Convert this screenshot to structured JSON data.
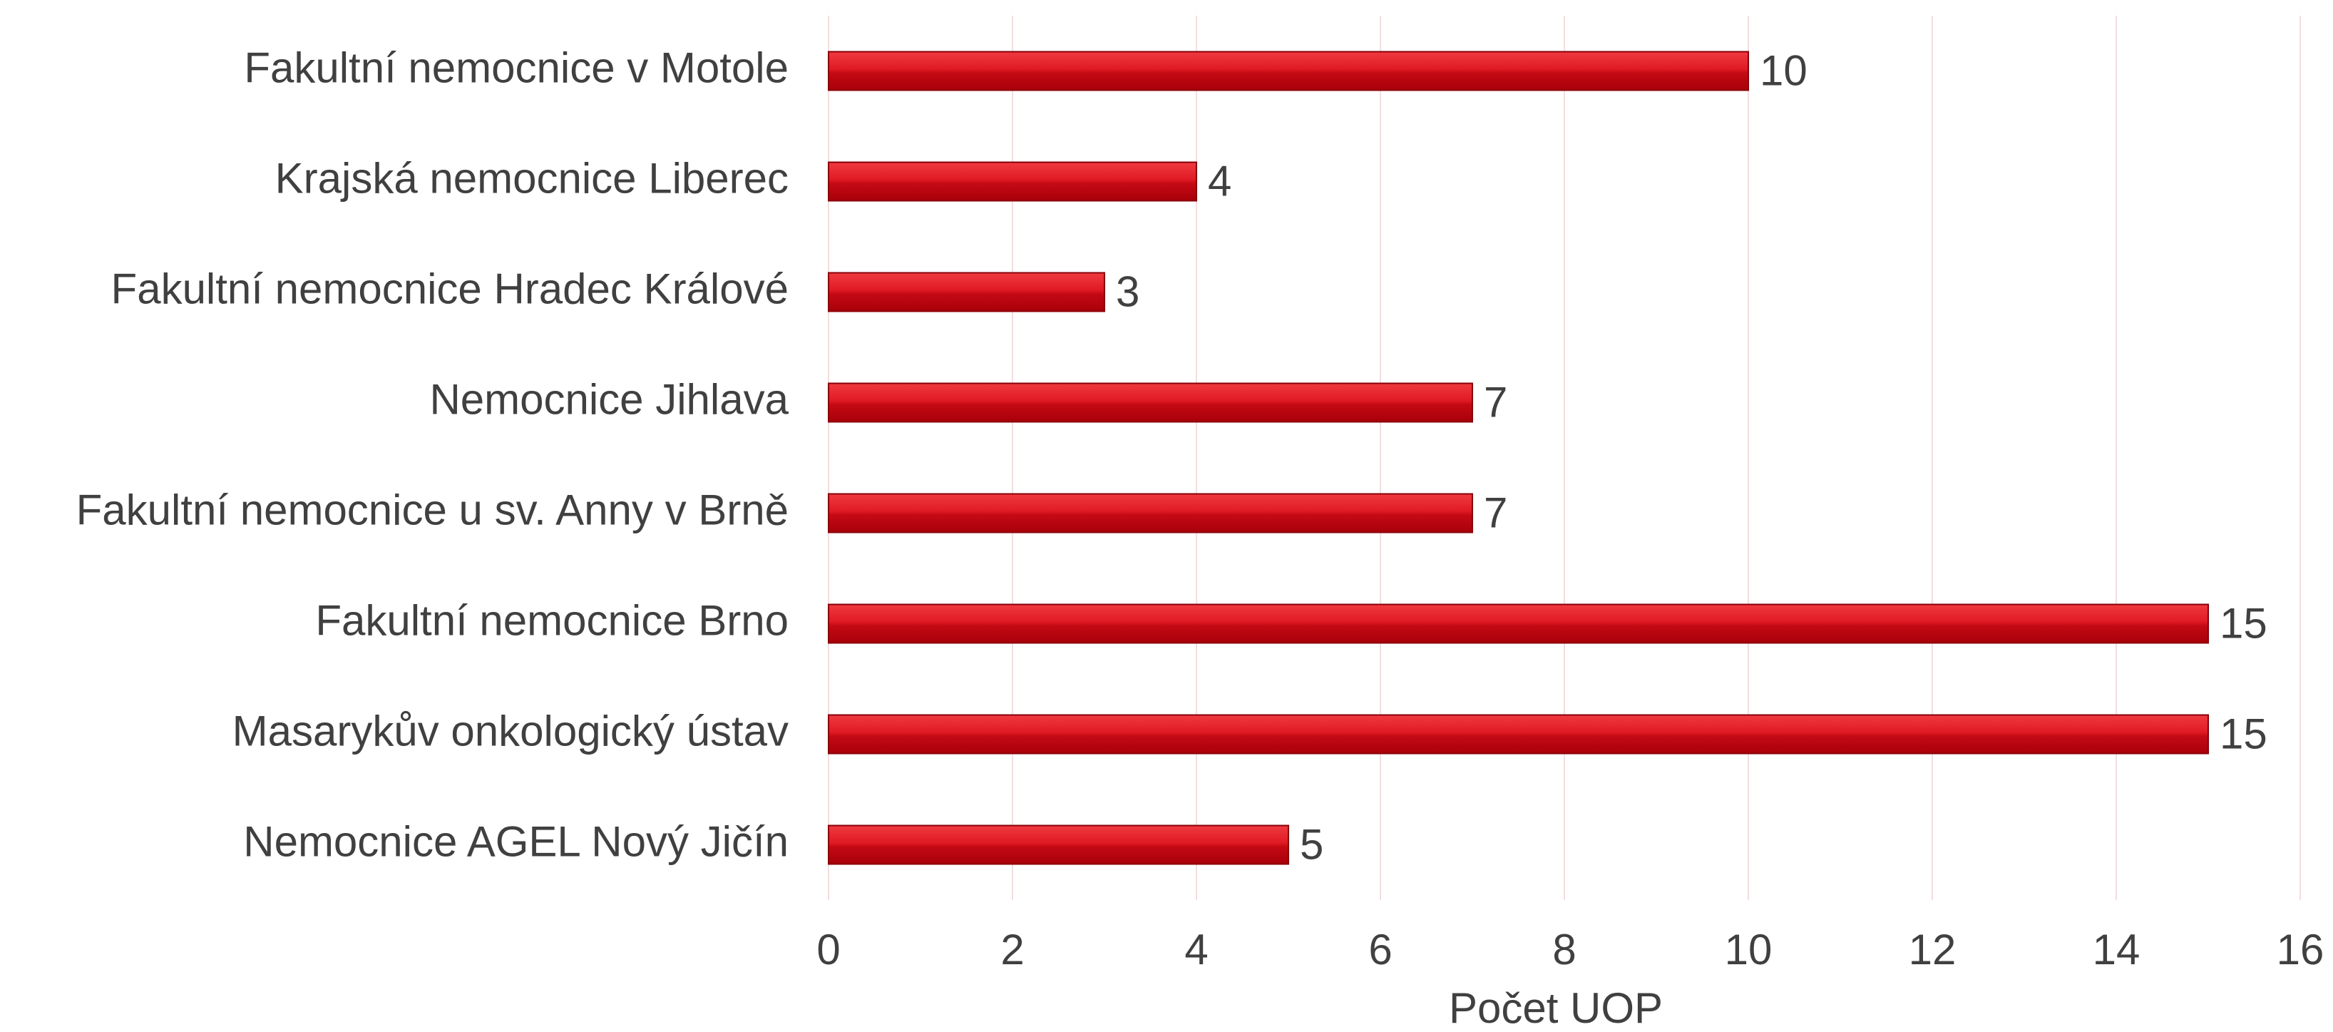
{
  "chart_data": {
    "type": "hbar",
    "categories": [
      "Fakultní nemocnice v Motole",
      "Krajská nemocnice Liberec",
      "Fakultní nemocnice Hradec Králové",
      "Nemocnice Jihlava",
      "Fakultní nemocnice u sv. Anny v Brně",
      "Fakultní nemocnice Brno",
      "Masarykův onkologický ústav",
      "Nemocnice AGEL Nový Jičín"
    ],
    "values": [
      10,
      4,
      3,
      7,
      7,
      15,
      15,
      5
    ],
    "color": "#d4101b",
    "xlabel": "Počet UOP",
    "xlim": [
      0,
      16
    ],
    "xticks": [
      0,
      2,
      4,
      6,
      8,
      10,
      12,
      14,
      16
    ],
    "grid": true
  }
}
